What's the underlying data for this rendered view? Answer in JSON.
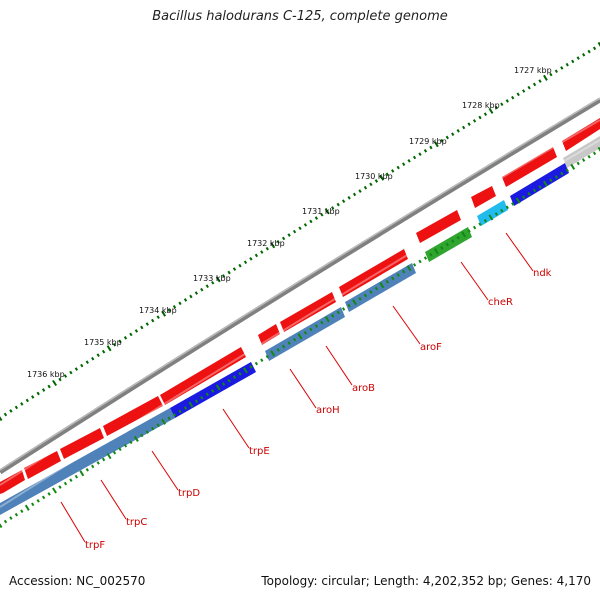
{
  "title": "Bacillus halodurans C-125, complete genome",
  "accession": "Accession: NC_002570",
  "topology": "Topology: circular; Length: 4,202,352 bp; Genes: 4,170",
  "kbp_labels": [
    "1727 kbp",
    "1728 kbp",
    "1729 kbp",
    "1730 kbp",
    "1731 kbp",
    "1732 kbp",
    "1733 kbp",
    "1734 kbp",
    "1735 kbp",
    "1736 kbp"
  ],
  "gene_labels": [
    "ndk",
    "cheR",
    "aroF",
    "aroB",
    "aroH",
    "trpE",
    "trpD",
    "trpC",
    "trpF"
  ],
  "colors": {
    "backbone": "#7a7a7a",
    "forward_cds": "#ee1111",
    "reverse_cds": "#4f82b8",
    "reverse_highlight": "#1a1ae0",
    "light_blue": "#22bbee",
    "green": "#2fa52f",
    "grey_feature": "#c8c8c8",
    "tick_dark": "#006600",
    "tick_light": "#118811",
    "label_red": "#cc0000"
  }
}
